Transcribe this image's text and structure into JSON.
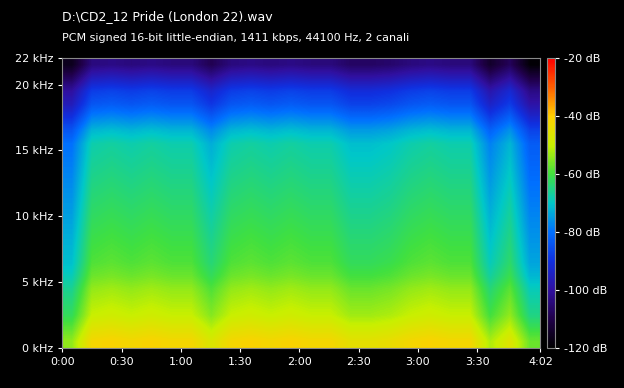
{
  "chart_data": {
    "type": "heatmap",
    "title": "D:\\CD2_12 Pride (London 22).wav",
    "subtitle": "PCM signed 16-bit little-endian, 1411 kbps, 44100 Hz, 2 canali",
    "xlim": [
      0,
      242
    ],
    "xticks": [
      {
        "value": 0,
        "label": "0:00"
      },
      {
        "value": 30,
        "label": "0:30"
      },
      {
        "value": 60,
        "label": "1:00"
      },
      {
        "value": 90,
        "label": "1:30"
      },
      {
        "value": 120,
        "label": "2:00"
      },
      {
        "value": 150,
        "label": "2:30"
      },
      {
        "value": 180,
        "label": "3:00"
      },
      {
        "value": 210,
        "label": "3:30"
      },
      {
        "value": 242,
        "label": "4:02"
      }
    ],
    "ylim": [
      0,
      22
    ],
    "yticks": [
      {
        "value": 0,
        "label": "0 kHz"
      },
      {
        "value": 5,
        "label": "5 kHz"
      },
      {
        "value": 10,
        "label": "10 kHz"
      },
      {
        "value": 15,
        "label": "15 kHz"
      },
      {
        "value": 20,
        "label": "20 kHz"
      },
      {
        "value": 22,
        "label": "22 kHz"
      }
    ],
    "colorbar_range": [
      -120,
      -20
    ],
    "colorbar_ticks": [
      {
        "value": -20,
        "label": "-20 dB"
      },
      {
        "value": -40,
        "label": "-40 dB"
      },
      {
        "value": -60,
        "label": "-60 dB"
      },
      {
        "value": -80,
        "label": "-80 dB"
      },
      {
        "value": -100,
        "label": "-100 dB"
      },
      {
        "value": -120,
        "label": "-120 dB"
      }
    ],
    "cells": [
      [
        -54,
        -42,
        -41,
        -42,
        -41,
        -42,
        -42,
        -47,
        -42,
        -41,
        -42,
        -41,
        -42,
        -42,
        -45,
        -45,
        -44,
        -42,
        -41,
        -42,
        -42,
        -52,
        -46,
        -57
      ],
      [
        -58,
        -46,
        -45,
        -46,
        -45,
        -46,
        -46,
        -51,
        -46,
        -45,
        -46,
        -45,
        -46,
        -46,
        -49,
        -49,
        -48,
        -46,
        -45,
        -46,
        -46,
        -56,
        -50,
        -61
      ],
      [
        -62,
        -50,
        -49,
        -50,
        -49,
        -50,
        -50,
        -55,
        -50,
        -49,
        -50,
        -49,
        -50,
        -50,
        -53,
        -53,
        -52,
        -50,
        -49,
        -50,
        -50,
        -60,
        -54,
        -65
      ],
      [
        -64,
        -52,
        -51,
        -52,
        -51,
        -52,
        -52,
        -57,
        -52,
        -51,
        -52,
        -51,
        -52,
        -52,
        -55,
        -55,
        -54,
        -52,
        -51,
        -52,
        -52,
        -62,
        -56,
        -67
      ],
      [
        -66,
        -54,
        -53,
        -54,
        -53,
        -54,
        -54,
        -59,
        -54,
        -53,
        -54,
        -53,
        -54,
        -54,
        -57,
        -57,
        -56,
        -54,
        -53,
        -54,
        -54,
        -64,
        -58,
        -69
      ],
      [
        -69,
        -57,
        -56,
        -57,
        -56,
        -57,
        -57,
        -62,
        -57,
        -56,
        -57,
        -56,
        -57,
        -57,
        -60,
        -60,
        -59,
        -57,
        -56,
        -57,
        -57,
        -67,
        -61,
        -72
      ],
      [
        -71,
        -59,
        -58,
        -59,
        -58,
        -59,
        -59,
        -64,
        -59,
        -58,
        -59,
        -58,
        -59,
        -59,
        -62,
        -62,
        -61,
        -59,
        -58,
        -59,
        -59,
        -69,
        -63,
        -74
      ],
      [
        -72,
        -60,
        -59,
        -60,
        -59,
        -60,
        -60,
        -65,
        -60,
        -59,
        -60,
        -59,
        -60,
        -60,
        -63,
        -63,
        -62,
        -60,
        -59,
        -60,
        -60,
        -70,
        -64,
        -75
      ],
      [
        -73,
        -61,
        -60,
        -61,
        -60,
        -61,
        -61,
        -66,
        -61,
        -60,
        -61,
        -60,
        -61,
        -61,
        -64,
        -64,
        -63,
        -61,
        -60,
        -61,
        -61,
        -71,
        -65,
        -76
      ],
      [
        -74,
        -62,
        -61,
        -62,
        -61,
        -62,
        -62,
        -67,
        -62,
        -61,
        -62,
        -61,
        -62,
        -62,
        -65,
        -65,
        -64,
        -62,
        -61,
        -62,
        -62,
        -72,
        -66,
        -77
      ],
      [
        -75,
        -63,
        -62,
        -63,
        -62,
        -63,
        -63,
        -68,
        -63,
        -62,
        -63,
        -62,
        -63,
        -63,
        -66,
        -66,
        -65,
        -63,
        -62,
        -63,
        -63,
        -73,
        -67,
        -78
      ],
      [
        -76,
        -64,
        -63,
        -64,
        -63,
        -64,
        -64,
        -69,
        -64,
        -63,
        -64,
        -63,
        -64,
        -64,
        -67,
        -67,
        -66,
        -64,
        -63,
        -64,
        -64,
        -74,
        -68,
        -79
      ],
      [
        -77,
        -65,
        -64,
        -65,
        -64,
        -65,
        -65,
        -70,
        -65,
        -64,
        -65,
        -64,
        -65,
        -65,
        -68,
        -68,
        -67,
        -65,
        -64,
        -65,
        -65,
        -75,
        -69,
        -80
      ],
      [
        -78,
        -66,
        -65,
        -66,
        -65,
        -66,
        -66,
        -71,
        -66,
        -65,
        -66,
        -65,
        -66,
        -66,
        -69,
        -69,
        -68,
        -66,
        -65,
        -66,
        -66,
        -76,
        -70,
        -81
      ],
      [
        -79,
        -67,
        -66,
        -67,
        -66,
        -67,
        -67,
        -72,
        -67,
        -66,
        -67,
        -66,
        -67,
        -67,
        -70,
        -70,
        -69,
        -67,
        -66,
        -67,
        -67,
        -77,
        -71,
        -82
      ],
      [
        -80,
        -68,
        -67,
        -68,
        -67,
        -68,
        -68,
        -73,
        -68,
        -67,
        -68,
        -67,
        -68,
        -68,
        -71,
        -71,
        -70,
        -68,
        -67,
        -68,
        -68,
        -78,
        -72,
        -83
      ],
      [
        -84,
        -72,
        -71,
        -72,
        -71,
        -72,
        -72,
        -77,
        -72,
        -71,
        -72,
        -71,
        -72,
        -72,
        -75,
        -75,
        -74,
        -72,
        -71,
        -72,
        -72,
        -82,
        -76,
        -87
      ],
      [
        -90,
        -78,
        -77,
        -78,
        -77,
        -78,
        -78,
        -83,
        -78,
        -77,
        -78,
        -77,
        -78,
        -78,
        -81,
        -81,
        -80,
        -78,
        -77,
        -78,
        -78,
        -88,
        -82,
        -93
      ],
      [
        -96,
        -84,
        -83,
        -84,
        -83,
        -84,
        -84,
        -89,
        -84,
        -83,
        -84,
        -83,
        -84,
        -84,
        -87,
        -87,
        -86,
        -84,
        -83,
        -84,
        -84,
        -94,
        -88,
        -99
      ],
      [
        -100,
        -88,
        -87,
        -88,
        -87,
        -88,
        -88,
        -93,
        -88,
        -87,
        -88,
        -87,
        -88,
        -88,
        -91,
        -91,
        -90,
        -88,
        -87,
        -88,
        -88,
        -98,
        -92,
        -103
      ],
      [
        -108,
        -96,
        -95,
        -96,
        -95,
        -96,
        -96,
        -101,
        -96,
        -95,
        -96,
        -95,
        -96,
        -96,
        -99,
        -99,
        -98,
        -96,
        -95,
        -96,
        -96,
        -106,
        -100,
        -111
      ],
      [
        -116,
        -104,
        -103,
        -104,
        -103,
        -104,
        -104,
        -109,
        -104,
        -103,
        -104,
        -103,
        -104,
        -104,
        -107,
        -107,
        -106,
        -104,
        -103,
        -104,
        -104,
        -114,
        -108,
        -119
      ]
    ]
  }
}
